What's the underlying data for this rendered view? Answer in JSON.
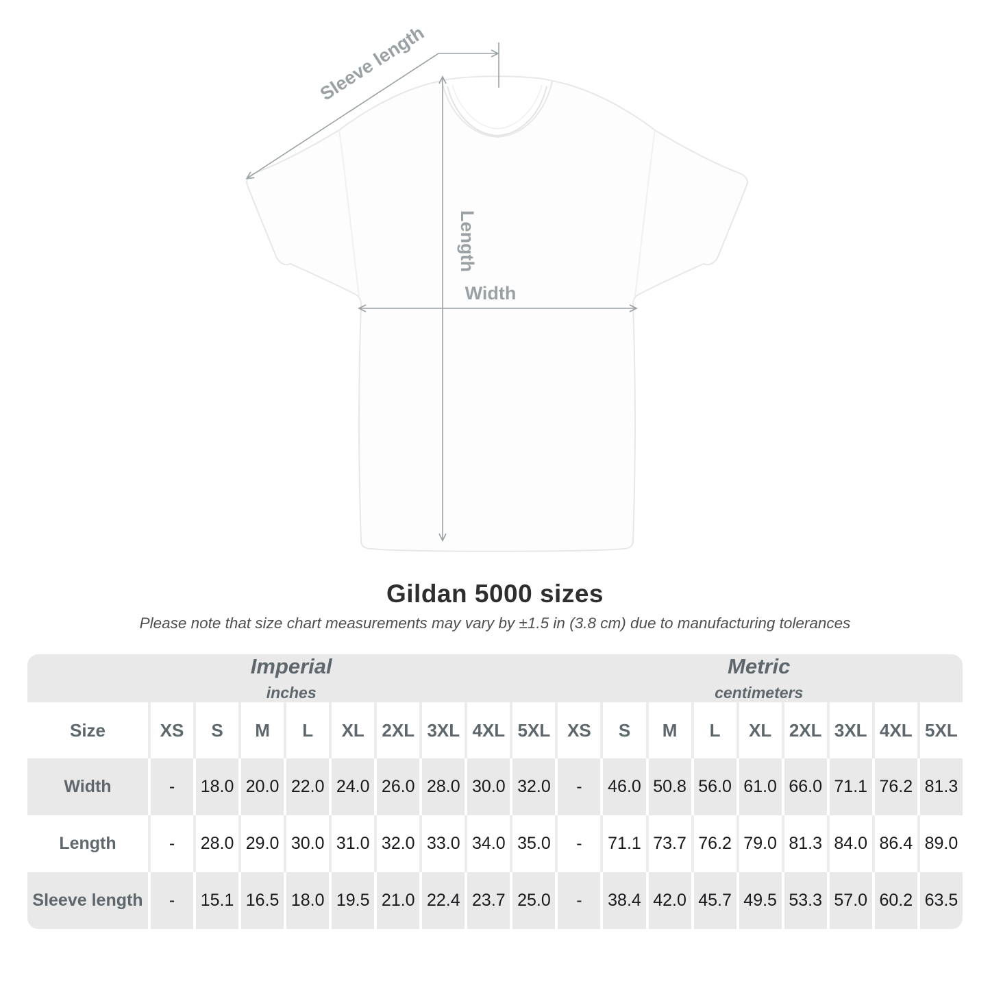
{
  "diagram": {
    "sleeve_length_label": "Sleeve length",
    "length_label": "Length",
    "width_label": "Width",
    "annotation_color": "#9aa1a5",
    "shirt_outline_color": "#e9e9e9"
  },
  "chart_data": {
    "type": "table",
    "title": "Gildan 5000 sizes",
    "note": "Please note that size chart measurements may vary by ±1.5 in (3.8 cm) due to manufacturing tolerances",
    "row_header": "Size",
    "groups": [
      {
        "label": "Imperial",
        "unit": "inches",
        "sizes": [
          "XS",
          "S",
          "M",
          "L",
          "XL",
          "2XL",
          "3XL",
          "4XL",
          "5XL"
        ]
      },
      {
        "label": "Metric",
        "unit": "centimeters",
        "sizes": [
          "XS",
          "S",
          "M",
          "L",
          "XL",
          "2XL",
          "3XL",
          "4XL",
          "5XL"
        ]
      }
    ],
    "rows": [
      {
        "label": "Width",
        "imperial": [
          "-",
          "18.0",
          "20.0",
          "22.0",
          "24.0",
          "26.0",
          "28.0",
          "30.0",
          "32.0"
        ],
        "metric": [
          "-",
          "46.0",
          "50.8",
          "56.0",
          "61.0",
          "66.0",
          "71.1",
          "76.2",
          "81.3"
        ]
      },
      {
        "label": "Length",
        "imperial": [
          "-",
          "28.0",
          "29.0",
          "30.0",
          "31.0",
          "32.0",
          "33.0",
          "34.0",
          "35.0"
        ],
        "metric": [
          "-",
          "71.1",
          "73.7",
          "76.2",
          "79.0",
          "81.3",
          "84.0",
          "86.4",
          "89.0"
        ]
      },
      {
        "label": "Sleeve length",
        "imperial": [
          "-",
          "15.1",
          "16.5",
          "18.0",
          "19.5",
          "21.0",
          "22.4",
          "23.7",
          "25.0"
        ],
        "metric": [
          "-",
          "38.4",
          "42.0",
          "45.7",
          "49.5",
          "53.3",
          "57.0",
          "60.2",
          "63.5"
        ]
      }
    ],
    "style": {
      "stripe_color": "#e9e9e9",
      "header_text_color": "#5d676c",
      "value_text_color": "#17191c"
    }
  }
}
